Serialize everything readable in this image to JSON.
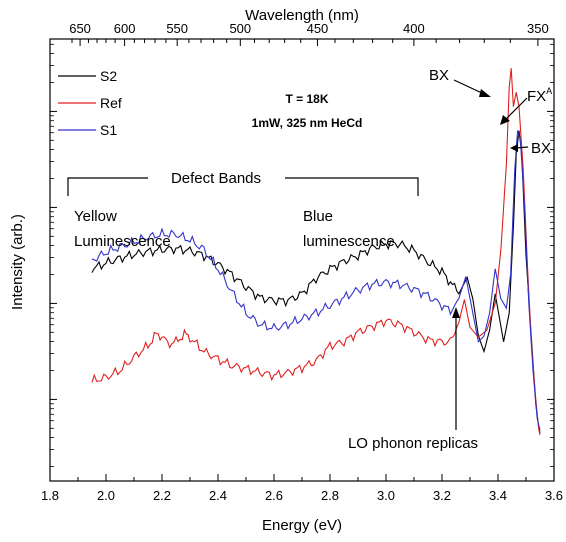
{
  "chart_data": {
    "type": "line",
    "xlabel": "Energy (eV)",
    "ylabel": "Intensity (arb.)",
    "top_axis_label": "Wavelength (nm)",
    "x_range": [
      1.8,
      3.6
    ],
    "y_scale": "log",
    "y_decades": 4,
    "x_ticks": [
      "1.8",
      "2.0",
      "2.2",
      "2.4",
      "2.6",
      "2.8",
      "3.0",
      "3.2",
      "3.4",
      "3.6"
    ],
    "top_ticks": [
      {
        "label": "650",
        "nm": 650
      },
      {
        "label": "600",
        "nm": 600
      },
      {
        "label": "550",
        "nm": 550
      },
      {
        "label": "500",
        "nm": 500
      },
      {
        "label": "450",
        "nm": 450
      },
      {
        "label": "400",
        "nm": 400
      },
      {
        "label": "350",
        "nm": 350
      }
    ],
    "legend": {
      "position": "top-left"
    },
    "conditions": [
      "T = 18K",
      "1mW, 325 nm HeCd"
    ],
    "annotations": {
      "defect_bands": "Defect Bands",
      "yellow": [
        "Yellow",
        "Luminescence"
      ],
      "blue": [
        "Blue",
        "luminescence"
      ],
      "lo_phonon": "LO phonon replicas",
      "bx_left": "BX",
      "fx": "FX",
      "fx_sup": "A",
      "bx_right": "BX"
    },
    "series": [
      {
        "name": "S2",
        "color": "#000000",
        "points": [
          [
            1.95,
            1.36
          ],
          [
            2.0,
            1.42
          ],
          [
            2.05,
            1.47
          ],
          [
            2.1,
            1.51
          ],
          [
            2.15,
            1.54
          ],
          [
            2.2,
            1.56
          ],
          [
            2.25,
            1.57
          ],
          [
            2.3,
            1.55
          ],
          [
            2.35,
            1.5
          ],
          [
            2.4,
            1.41
          ],
          [
            2.45,
            1.3
          ],
          [
            2.5,
            1.17
          ],
          [
            2.55,
            1.06
          ],
          [
            2.6,
            1.03
          ],
          [
            2.65,
            1.03
          ],
          [
            2.7,
            1.1
          ],
          [
            2.75,
            1.26
          ],
          [
            2.8,
            1.36
          ],
          [
            2.85,
            1.44
          ],
          [
            2.9,
            1.5
          ],
          [
            2.95,
            1.58
          ],
          [
            3.0,
            1.62
          ],
          [
            3.05,
            1.62
          ],
          [
            3.1,
            1.55
          ],
          [
            3.15,
            1.43
          ],
          [
            3.2,
            1.33
          ],
          [
            3.23,
            1.22
          ],
          [
            3.26,
            1.1
          ],
          [
            3.29,
            1.27
          ],
          [
            3.31,
            1.05
          ],
          [
            3.33,
            0.66
          ],
          [
            3.35,
            0.5
          ],
          [
            3.37,
            0.72
          ],
          [
            3.39,
            1.1
          ],
          [
            3.405,
            0.85
          ],
          [
            3.42,
            0.6
          ],
          [
            3.44,
            0.9
          ],
          [
            3.455,
            1.8
          ],
          [
            3.465,
            2.55
          ],
          [
            3.475,
            2.8
          ],
          [
            3.485,
            2.55
          ],
          [
            3.5,
            1.5
          ],
          [
            3.52,
            0.6
          ],
          [
            3.535,
            -0.05
          ],
          [
            3.545,
            -0.28
          ],
          [
            3.55,
            -0.35
          ]
        ]
      },
      {
        "name": "Ref",
        "color": "#e02020",
        "points": [
          [
            1.95,
            0.19
          ],
          [
            2.0,
            0.23
          ],
          [
            2.05,
            0.3
          ],
          [
            2.1,
            0.44
          ],
          [
            2.15,
            0.56
          ],
          [
            2.18,
            0.68
          ],
          [
            2.2,
            0.66
          ],
          [
            2.22,
            0.58
          ],
          [
            2.25,
            0.6
          ],
          [
            2.28,
            0.68
          ],
          [
            2.3,
            0.64
          ],
          [
            2.35,
            0.5
          ],
          [
            2.4,
            0.42
          ],
          [
            2.45,
            0.35
          ],
          [
            2.5,
            0.32
          ],
          [
            2.55,
            0.28
          ],
          [
            2.6,
            0.25
          ],
          [
            2.65,
            0.28
          ],
          [
            2.7,
            0.33
          ],
          [
            2.75,
            0.4
          ],
          [
            2.8,
            0.56
          ],
          [
            2.85,
            0.6
          ],
          [
            2.9,
            0.7
          ],
          [
            2.95,
            0.76
          ],
          [
            3.0,
            0.82
          ],
          [
            3.05,
            0.78
          ],
          [
            3.1,
            0.7
          ],
          [
            3.15,
            0.62
          ],
          [
            3.2,
            0.6
          ],
          [
            3.23,
            0.6
          ],
          [
            3.26,
            0.8
          ],
          [
            3.28,
            1.04
          ],
          [
            3.3,
            0.75
          ],
          [
            3.33,
            0.65
          ],
          [
            3.36,
            0.72
          ],
          [
            3.39,
            1.0
          ],
          [
            3.41,
            1.55
          ],
          [
            3.43,
            2.45
          ],
          [
            3.44,
            3.25
          ],
          [
            3.447,
            3.45
          ],
          [
            3.455,
            3.05
          ],
          [
            3.465,
            3.2
          ],
          [
            3.475,
            3.05
          ],
          [
            3.49,
            2.4
          ],
          [
            3.505,
            1.4
          ],
          [
            3.52,
            0.55
          ],
          [
            3.535,
            0.0
          ],
          [
            3.545,
            -0.3
          ],
          [
            3.55,
            -0.37
          ]
        ]
      },
      {
        "name": "S1",
        "color": "#3333cc",
        "points": [
          [
            1.95,
            1.45
          ],
          [
            2.0,
            1.53
          ],
          [
            2.05,
            1.59
          ],
          [
            2.1,
            1.64
          ],
          [
            2.15,
            1.69
          ],
          [
            2.2,
            1.72
          ],
          [
            2.25,
            1.72
          ],
          [
            2.3,
            1.66
          ],
          [
            2.35,
            1.56
          ],
          [
            2.4,
            1.36
          ],
          [
            2.45,
            1.12
          ],
          [
            2.5,
            0.9
          ],
          [
            2.55,
            0.78
          ],
          [
            2.6,
            0.74
          ],
          [
            2.65,
            0.78
          ],
          [
            2.7,
            0.84
          ],
          [
            2.75,
            0.9
          ],
          [
            2.8,
            0.98
          ],
          [
            2.85,
            1.06
          ],
          [
            2.9,
            1.14
          ],
          [
            2.95,
            1.2
          ],
          [
            3.0,
            1.22
          ],
          [
            3.05,
            1.2
          ],
          [
            3.1,
            1.15
          ],
          [
            3.15,
            1.08
          ],
          [
            3.2,
            0.98
          ],
          [
            3.23,
            0.92
          ],
          [
            3.26,
            1.05
          ],
          [
            3.285,
            1.28
          ],
          [
            3.31,
            0.9
          ],
          [
            3.33,
            0.6
          ],
          [
            3.35,
            0.66
          ],
          [
            3.37,
            0.9
          ],
          [
            3.39,
            1.36
          ],
          [
            3.41,
            1.05
          ],
          [
            3.43,
            0.95
          ],
          [
            3.445,
            1.3
          ],
          [
            3.46,
            2.4
          ],
          [
            3.47,
            2.8
          ],
          [
            3.48,
            2.7
          ],
          [
            3.495,
            2.0
          ],
          [
            3.51,
            1.0
          ],
          [
            3.525,
            0.3
          ],
          [
            3.54,
            -0.2
          ],
          [
            3.55,
            -0.32
          ]
        ]
      }
    ]
  }
}
